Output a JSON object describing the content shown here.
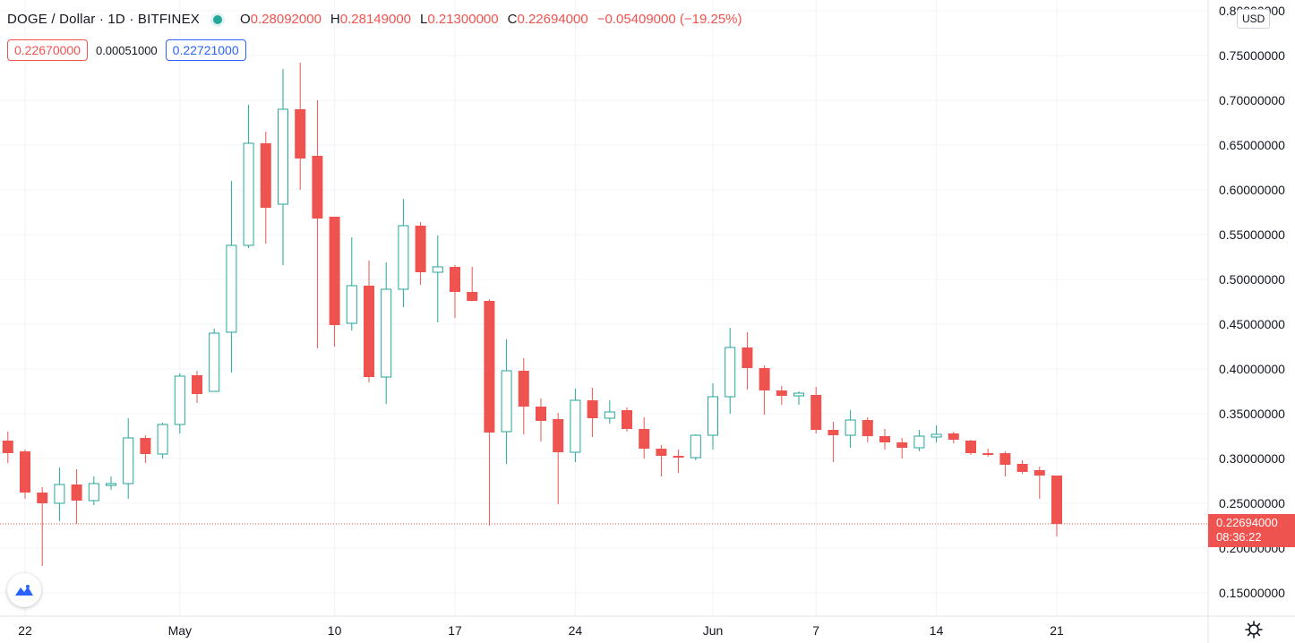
{
  "header": {
    "symbol": "DOGE / Dollar · 1D · BITFINEX",
    "o_label": "O",
    "o_value": "0.28092000",
    "h_label": "H",
    "h_value": "0.28149000",
    "l_label": "L",
    "l_value": "0.21300000",
    "c_label": "C",
    "c_value": "0.22694000",
    "change": "−0.05409000 (−19.25%)"
  },
  "quote": {
    "bid": "0.22670000",
    "spread": "0.00051000",
    "ask": "0.22721000"
  },
  "currency_button": "USD",
  "last_price": {
    "value": "0.22694000",
    "countdown": "08:36:22"
  },
  "colors": {
    "up": "#26a69a",
    "down": "#ef5350",
    "grid": "#f0f3fa",
    "text": "#131722",
    "accent": "#2962ff"
  },
  "icons": {
    "logo": "tradingview-logo-icon",
    "settings": "gear-icon"
  },
  "chart_data": {
    "type": "candlestick",
    "ylim": [
      0.12,
      0.8
    ],
    "y_ticks": [
      "0.15000000",
      "0.20000000",
      "0.25000000",
      "0.30000000",
      "0.35000000",
      "0.40000000",
      "0.45000000",
      "0.50000000",
      "0.55000000",
      "0.60000000",
      "0.65000000",
      "0.70000000",
      "0.75000000",
      "0.80000000"
    ],
    "x_ticks": [
      {
        "label": "22",
        "index": 1
      },
      {
        "label": "May",
        "index": 10
      },
      {
        "label": "10",
        "index": 19
      },
      {
        "label": "17",
        "index": 26
      },
      {
        "label": "24",
        "index": 33
      },
      {
        "label": "Jun",
        "index": 41
      },
      {
        "label": "7",
        "index": 47
      },
      {
        "label": "14",
        "index": 54
      },
      {
        "label": "21",
        "index": 61
      }
    ],
    "candles": [
      {
        "o": 0.32,
        "h": 0.33,
        "l": 0.295,
        "c": 0.306
      },
      {
        "o": 0.308,
        "h": 0.31,
        "l": 0.255,
        "c": 0.262
      },
      {
        "o": 0.262,
        "h": 0.268,
        "l": 0.18,
        "c": 0.25
      },
      {
        "o": 0.25,
        "h": 0.29,
        "l": 0.23,
        "c": 0.271
      },
      {
        "o": 0.271,
        "h": 0.288,
        "l": 0.227,
        "c": 0.253
      },
      {
        "o": 0.253,
        "h": 0.28,
        "l": 0.248,
        "c": 0.272
      },
      {
        "o": 0.27,
        "h": 0.28,
        "l": 0.265,
        "c": 0.272
      },
      {
        "o": 0.272,
        "h": 0.345,
        "l": 0.255,
        "c": 0.323
      },
      {
        "o": 0.323,
        "h": 0.326,
        "l": 0.295,
        "c": 0.305
      },
      {
        "o": 0.305,
        "h": 0.34,
        "l": 0.3,
        "c": 0.338
      },
      {
        "o": 0.338,
        "h": 0.395,
        "l": 0.328,
        "c": 0.392
      },
      {
        "o": 0.393,
        "h": 0.398,
        "l": 0.362,
        "c": 0.372
      },
      {
        "o": 0.375,
        "h": 0.445,
        "l": 0.375,
        "c": 0.44
      },
      {
        "o": 0.441,
        "h": 0.61,
        "l": 0.396,
        "c": 0.538
      },
      {
        "o": 0.538,
        "h": 0.695,
        "l": 0.535,
        "c": 0.652
      },
      {
        "o": 0.652,
        "h": 0.665,
        "l": 0.54,
        "c": 0.58
      },
      {
        "o": 0.584,
        "h": 0.735,
        "l": 0.516,
        "c": 0.69
      },
      {
        "o": 0.69,
        "h": 0.742,
        "l": 0.6,
        "c": 0.635
      },
      {
        "o": 0.638,
        "h": 0.7,
        "l": 0.423,
        "c": 0.568
      },
      {
        "o": 0.57,
        "h": 0.57,
        "l": 0.425,
        "c": 0.449
      },
      {
        "o": 0.451,
        "h": 0.547,
        "l": 0.443,
        "c": 0.493
      },
      {
        "o": 0.493,
        "h": 0.521,
        "l": 0.385,
        "c": 0.391
      },
      {
        "o": 0.391,
        "h": 0.519,
        "l": 0.361,
        "c": 0.489
      },
      {
        "o": 0.489,
        "h": 0.59,
        "l": 0.469,
        "c": 0.56
      },
      {
        "o": 0.56,
        "h": 0.564,
        "l": 0.494,
        "c": 0.508
      },
      {
        "o": 0.508,
        "h": 0.549,
        "l": 0.452,
        "c": 0.514
      },
      {
        "o": 0.514,
        "h": 0.516,
        "l": 0.457,
        "c": 0.486
      },
      {
        "o": 0.486,
        "h": 0.514,
        "l": 0.476,
        "c": 0.476
      },
      {
        "o": 0.476,
        "h": 0.478,
        "l": 0.225,
        "c": 0.329
      },
      {
        "o": 0.33,
        "h": 0.433,
        "l": 0.294,
        "c": 0.398
      },
      {
        "o": 0.398,
        "h": 0.412,
        "l": 0.327,
        "c": 0.358
      },
      {
        "o": 0.358,
        "h": 0.367,
        "l": 0.319,
        "c": 0.342
      },
      {
        "o": 0.344,
        "h": 0.351,
        "l": 0.249,
        "c": 0.307
      },
      {
        "o": 0.307,
        "h": 0.378,
        "l": 0.296,
        "c": 0.365
      },
      {
        "o": 0.365,
        "h": 0.379,
        "l": 0.324,
        "c": 0.345
      },
      {
        "o": 0.345,
        "h": 0.365,
        "l": 0.339,
        "c": 0.352
      },
      {
        "o": 0.354,
        "h": 0.357,
        "l": 0.33,
        "c": 0.333
      },
      {
        "o": 0.333,
        "h": 0.346,
        "l": 0.3,
        "c": 0.311
      },
      {
        "o": 0.311,
        "h": 0.315,
        "l": 0.28,
        "c": 0.303
      },
      {
        "o": 0.303,
        "h": 0.31,
        "l": 0.284,
        "c": 0.301
      },
      {
        "o": 0.301,
        "h": 0.327,
        "l": 0.298,
        "c": 0.326
      },
      {
        "o": 0.326,
        "h": 0.384,
        "l": 0.31,
        "c": 0.369
      },
      {
        "o": 0.369,
        "h": 0.446,
        "l": 0.35,
        "c": 0.424
      },
      {
        "o": 0.424,
        "h": 0.441,
        "l": 0.377,
        "c": 0.401
      },
      {
        "o": 0.401,
        "h": 0.404,
        "l": 0.349,
        "c": 0.376
      },
      {
        "o": 0.376,
        "h": 0.381,
        "l": 0.36,
        "c": 0.37
      },
      {
        "o": 0.37,
        "h": 0.375,
        "l": 0.36,
        "c": 0.373
      },
      {
        "o": 0.371,
        "h": 0.38,
        "l": 0.328,
        "c": 0.332
      },
      {
        "o": 0.332,
        "h": 0.341,
        "l": 0.296,
        "c": 0.326
      },
      {
        "o": 0.326,
        "h": 0.354,
        "l": 0.312,
        "c": 0.343
      },
      {
        "o": 0.343,
        "h": 0.346,
        "l": 0.318,
        "c": 0.325
      },
      {
        "o": 0.325,
        "h": 0.333,
        "l": 0.31,
        "c": 0.318
      },
      {
        "o": 0.318,
        "h": 0.323,
        "l": 0.3,
        "c": 0.312
      },
      {
        "o": 0.312,
        "h": 0.332,
        "l": 0.308,
        "c": 0.325
      },
      {
        "o": 0.324,
        "h": 0.337,
        "l": 0.318,
        "c": 0.327
      },
      {
        "o": 0.328,
        "h": 0.33,
        "l": 0.317,
        "c": 0.321
      },
      {
        "o": 0.32,
        "h": 0.321,
        "l": 0.304,
        "c": 0.306
      },
      {
        "o": 0.306,
        "h": 0.311,
        "l": 0.302,
        "c": 0.304
      },
      {
        "o": 0.306,
        "h": 0.308,
        "l": 0.28,
        "c": 0.293
      },
      {
        "o": 0.294,
        "h": 0.298,
        "l": 0.283,
        "c": 0.285
      },
      {
        "o": 0.287,
        "h": 0.291,
        "l": 0.255,
        "c": 0.281
      },
      {
        "o": 0.281,
        "h": 0.281,
        "l": 0.213,
        "c": 0.227
      }
    ],
    "last_price_line": 0.22694
  }
}
